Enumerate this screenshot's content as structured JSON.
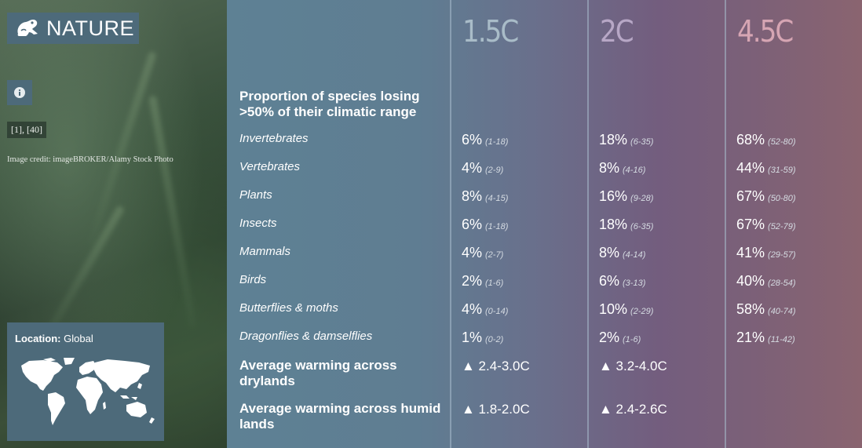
{
  "header": {
    "title": "NATURE",
    "title_icon": "frog-icon"
  },
  "info_icon": "info-icon",
  "refs": "[1], [40]",
  "credit": "Image credit: imageBROKER/Alamy Stock Photo",
  "location": {
    "label": "Location:",
    "value": "Global",
    "map_icon": "world-map-icon"
  },
  "columns": [
    {
      "label": "1.5C",
      "color": "#a9bcc8"
    },
    {
      "label": "2C",
      "color": "#b7a7c6"
    },
    {
      "label": "4.5C",
      "color": "#d6a5b3"
    }
  ],
  "table": {
    "section_heading": "Proportion of species losing >50% of their climatic range",
    "rows": [
      {
        "name": "Invertebrates",
        "values": [
          [
            "6%",
            "(1-18)"
          ],
          [
            "18%",
            "(6-35)"
          ],
          [
            "68%",
            "(52-80)"
          ]
        ]
      },
      {
        "name": "Vertebrates",
        "values": [
          [
            "4%",
            "(2-9)"
          ],
          [
            "8%",
            "(4-16)"
          ],
          [
            "44%",
            "(31-59)"
          ]
        ]
      },
      {
        "name": "Plants",
        "values": [
          [
            "8%",
            "(4-15)"
          ],
          [
            "16%",
            "(9-28)"
          ],
          [
            "67%",
            "(50-80)"
          ]
        ]
      },
      {
        "name": "Insects",
        "values": [
          [
            "6%",
            "(1-18)"
          ],
          [
            "18%",
            "(6-35)"
          ],
          [
            "67%",
            "(52-79)"
          ]
        ]
      },
      {
        "name": "Mammals",
        "values": [
          [
            "4%",
            "(2-7)"
          ],
          [
            "8%",
            "(4-14)"
          ],
          [
            "41%",
            "(29-57)"
          ]
        ]
      },
      {
        "name": "Birds",
        "values": [
          [
            "2%",
            "(1-6)"
          ],
          [
            "6%",
            "(3-13)"
          ],
          [
            "40%",
            "(28-54)"
          ]
        ]
      },
      {
        "name": "Butterflies & moths",
        "values": [
          [
            "4%",
            "(0-14)"
          ],
          [
            "10%",
            "(2-29)"
          ],
          [
            "58%",
            "(40-74)"
          ]
        ]
      },
      {
        "name": "Dragonflies & damselflies",
        "values": [
          [
            "1%",
            "(0-2)"
          ],
          [
            "2%",
            "(1-6)"
          ],
          [
            "21%",
            "(11-42)"
          ]
        ]
      }
    ],
    "warming_rows": [
      {
        "name": "Average warming across drylands",
        "values": [
          "▲ 2.4-3.0C",
          "▲ 3.2-4.0C"
        ]
      },
      {
        "name": "Average warming across humid lands",
        "values": [
          "▲ 1.8-2.0C",
          "▲ 2.4-2.6C"
        ]
      }
    ]
  }
}
